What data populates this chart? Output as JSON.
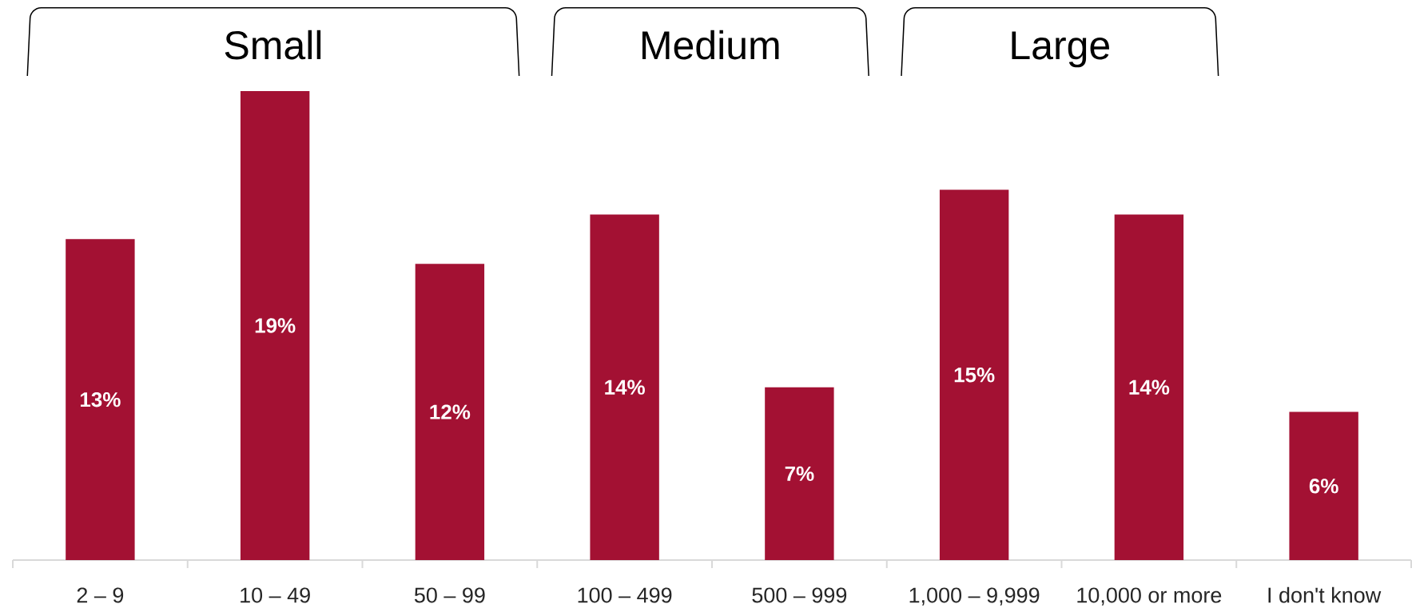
{
  "chart_data": {
    "type": "bar",
    "categories": [
      "2 – 9",
      "10 – 49",
      "50 – 99",
      "100 – 499",
      "500 – 999",
      "1,000 – 9,999",
      "10,000 or more",
      "I don't know"
    ],
    "values": [
      13,
      19,
      12,
      14,
      7,
      15,
      14,
      6
    ],
    "value_labels": [
      "13%",
      "19%",
      "12%",
      "14%",
      "7%",
      "15%",
      "14%",
      "6%"
    ],
    "color": "#a31133",
    "tick_labels": "x",
    "annotations": [
      "Small",
      "Medium",
      "Large"
    ]
  }
}
